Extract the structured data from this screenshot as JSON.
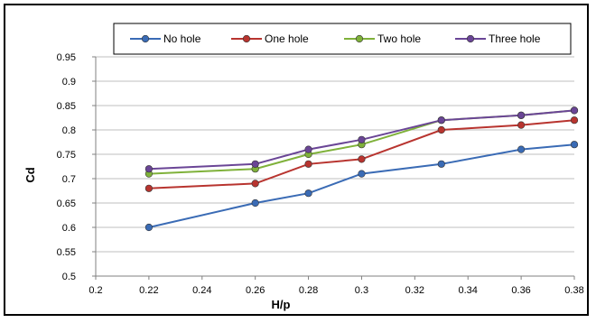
{
  "chart_data": {
    "type": "line",
    "title": "",
    "xlabel": "H/p",
    "ylabel": "Cd",
    "xlim": [
      0.2,
      0.38
    ],
    "ylim": [
      0.5,
      0.95
    ],
    "x_ticks": [
      "0.2",
      "0.22",
      "0.24",
      "0.26",
      "0.28",
      "0.3",
      "0.32",
      "0.34",
      "0.36",
      "0.38"
    ],
    "y_ticks": [
      "0.5",
      "0.55",
      "0.6",
      "0.65",
      "0.7",
      "0.75",
      "0.8",
      "0.85",
      "0.9",
      "0.95"
    ],
    "grid": "horizontal",
    "legend_position": "top",
    "x": [
      0.22,
      0.26,
      0.28,
      0.3,
      0.33,
      0.36,
      0.38
    ],
    "series": [
      {
        "name": "No hole",
        "color": "#3a6bb5",
        "values": [
          0.6,
          0.65,
          0.67,
          0.71,
          0.73,
          0.76,
          0.77
        ]
      },
      {
        "name": "One hole",
        "color": "#b8342f",
        "values": [
          0.68,
          0.69,
          0.73,
          0.74,
          0.8,
          0.81,
          0.82
        ]
      },
      {
        "name": "Two hole",
        "color": "#7fb13a",
        "values": [
          0.71,
          0.72,
          0.75,
          0.77,
          0.82,
          0.83,
          0.84
        ]
      },
      {
        "name": "Three hole",
        "color": "#6a4596",
        "values": [
          0.72,
          0.73,
          0.76,
          0.78,
          0.82,
          0.83,
          0.84
        ]
      }
    ]
  }
}
